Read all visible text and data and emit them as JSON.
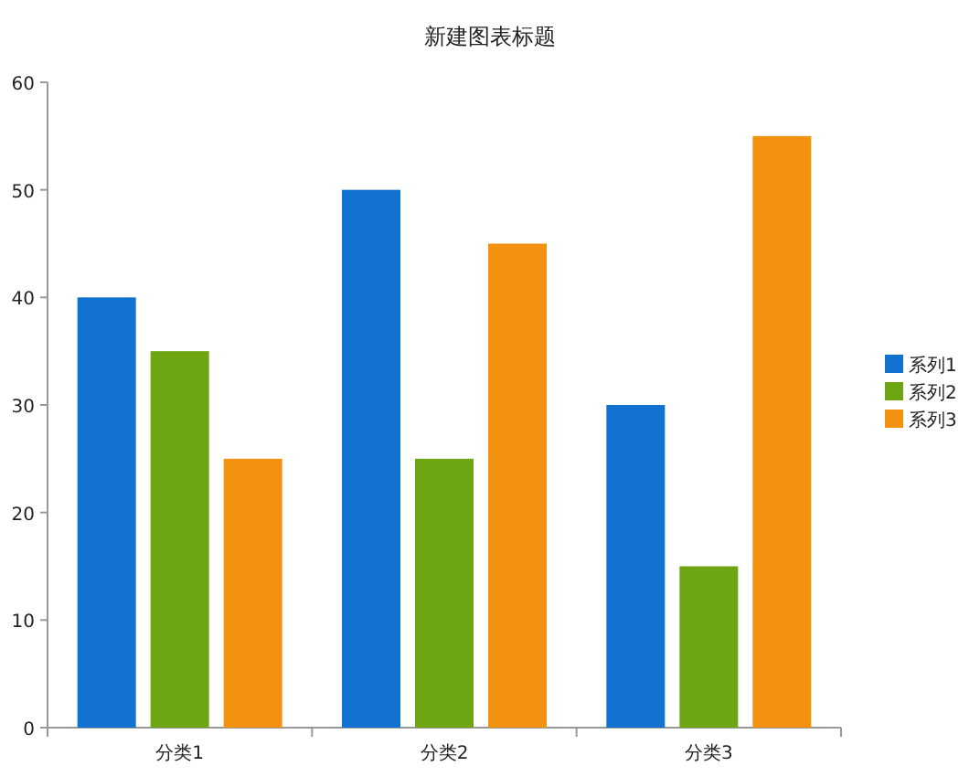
{
  "chart_data": {
    "type": "bar",
    "title": "新建图表标题",
    "categories": [
      "分类1",
      "分类2",
      "分类3"
    ],
    "series": [
      {
        "name": "系列1",
        "color": "#1172d0",
        "values": [
          40,
          50,
          30
        ]
      },
      {
        "name": "系列2",
        "color": "#6ea613",
        "values": [
          35,
          25,
          15
        ]
      },
      {
        "name": "系列3",
        "color": "#f39111",
        "values": [
          25,
          45,
          55
        ]
      }
    ],
    "ylim": [
      0,
      60
    ],
    "yticks": [
      0,
      10,
      20,
      30,
      40,
      50,
      60
    ],
    "legend": "right",
    "grid": false
  }
}
